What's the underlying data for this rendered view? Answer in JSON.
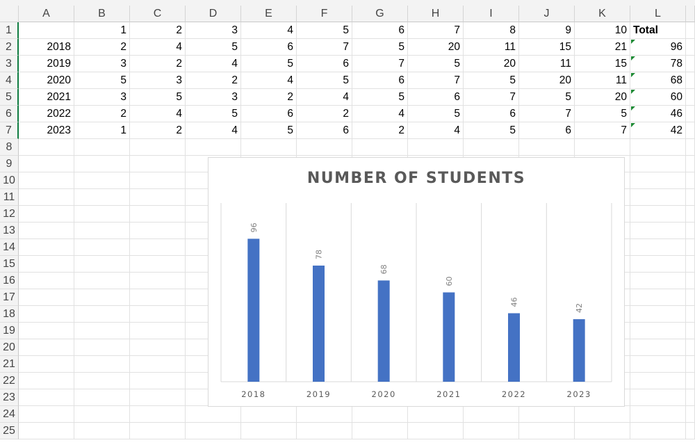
{
  "columns": [
    "A",
    "B",
    "C",
    "D",
    "E",
    "F",
    "G",
    "H",
    "I",
    "J",
    "K",
    "L"
  ],
  "rows": [
    "1",
    "2",
    "3",
    "4",
    "5",
    "6",
    "7",
    "8",
    "9",
    "10",
    "11",
    "12",
    "13",
    "14",
    "15",
    "16",
    "17",
    "18",
    "19",
    "20",
    "21",
    "22",
    "23",
    "24",
    "25"
  ],
  "header_row": [
    "",
    "1",
    "2",
    "3",
    "4",
    "5",
    "6",
    "7",
    "8",
    "9",
    "10",
    "Total"
  ],
  "data_rows": [
    [
      "2018",
      "2",
      "4",
      "5",
      "6",
      "7",
      "5",
      "20",
      "11",
      "15",
      "21",
      "96"
    ],
    [
      "2019",
      "3",
      "2",
      "4",
      "5",
      "6",
      "7",
      "5",
      "20",
      "11",
      "15",
      "78"
    ],
    [
      "2020",
      "5",
      "3",
      "2",
      "4",
      "5",
      "6",
      "7",
      "5",
      "20",
      "11",
      "68"
    ],
    [
      "2021",
      "3",
      "5",
      "3",
      "2",
      "4",
      "5",
      "6",
      "7",
      "5",
      "20",
      "60"
    ],
    [
      "2022",
      "2",
      "4",
      "5",
      "6",
      "2",
      "4",
      "5",
      "6",
      "7",
      "5",
      "46"
    ],
    [
      "2023",
      "1",
      "2",
      "4",
      "5",
      "6",
      "2",
      "4",
      "5",
      "6",
      "7",
      "42"
    ]
  ],
  "chart_data": {
    "type": "bar",
    "title": "NUMBER OF STUDENTS",
    "categories": [
      "2018",
      "2019",
      "2020",
      "2021",
      "2022",
      "2023"
    ],
    "values": [
      96,
      78,
      68,
      60,
      46,
      42
    ],
    "data_labels": [
      "96",
      "78",
      "68",
      "60",
      "46",
      "42"
    ],
    "bar_color": "#4472c4",
    "ylim": [
      0,
      120
    ],
    "grid": "vertical category gridlines",
    "legend": "none",
    "xlabel": "",
    "ylabel": ""
  }
}
